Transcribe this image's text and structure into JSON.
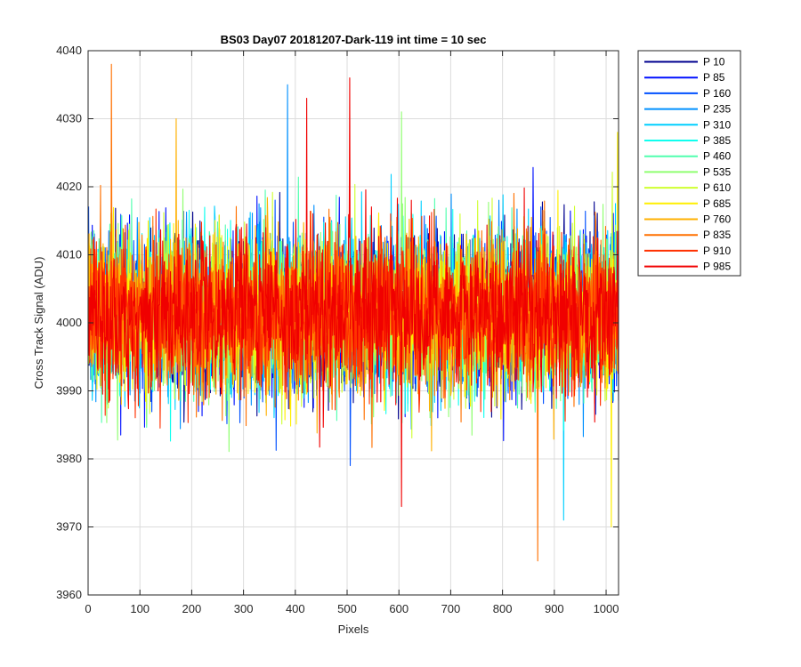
{
  "chart_data": {
    "type": "line",
    "title": "BS03 Day07 20181207-Dark-119 int time = 10 sec",
    "xlabel": "Pixels",
    "ylabel": "Cross Track Signal (ADU)",
    "xlim": [
      0,
      1024
    ],
    "ylim": [
      3960,
      4040
    ],
    "xticks": [
      0,
      100,
      200,
      300,
      400,
      500,
      600,
      700,
      800,
      900,
      1000
    ],
    "yticks": [
      3960,
      3970,
      3980,
      3990,
      4000,
      4010,
      4020,
      4030,
      4040
    ],
    "grid": true,
    "legend_position": "outside-top-right",
    "noise_profile": {
      "mean": 4001.5,
      "std": 5.6,
      "n_points": 1024,
      "observed_max": 4038,
      "observed_min": 3965
    },
    "series": [
      {
        "name": "P 10",
        "color": "#00008F"
      },
      {
        "name": "P 85",
        "color": "#0010FF"
      },
      {
        "name": "P 160",
        "color": "#0050FF"
      },
      {
        "name": "P 235",
        "color": "#0090FF"
      },
      {
        "name": "P 310",
        "color": "#00CFFF"
      },
      {
        "name": "P 385",
        "color": "#10FFEF"
      },
      {
        "name": "P 460",
        "color": "#50FFAF"
      },
      {
        "name": "P 535",
        "color": "#8FFF70"
      },
      {
        "name": "P 610",
        "color": "#CFFF30"
      },
      {
        "name": "P 685",
        "color": "#FFEF00"
      },
      {
        "name": "P 760",
        "color": "#FFB000"
      },
      {
        "name": "P 835",
        "color": "#FF7000"
      },
      {
        "name": "P 910",
        "color": "#FF3000"
      },
      {
        "name": "P 985",
        "color": "#F00000"
      }
    ],
    "spikes": [
      {
        "series": "P 835",
        "x": 45,
        "y": 4038
      },
      {
        "series": "P 985",
        "x": 505,
        "y": 4036
      },
      {
        "series": "P 235",
        "x": 385,
        "y": 4035
      },
      {
        "series": "P 985",
        "x": 422,
        "y": 4033
      },
      {
        "series": "P 535",
        "x": 605,
        "y": 4031
      },
      {
        "series": "P 760",
        "x": 170,
        "y": 4030
      },
      {
        "series": "P 685",
        "x": 1022,
        "y": 4028
      },
      {
        "series": "P 835",
        "x": 868,
        "y": 3965
      },
      {
        "series": "P 685",
        "x": 1010,
        "y": 3970
      },
      {
        "series": "P 310",
        "x": 918,
        "y": 3971
      },
      {
        "series": "P 985",
        "x": 605,
        "y": 3973
      }
    ]
  }
}
